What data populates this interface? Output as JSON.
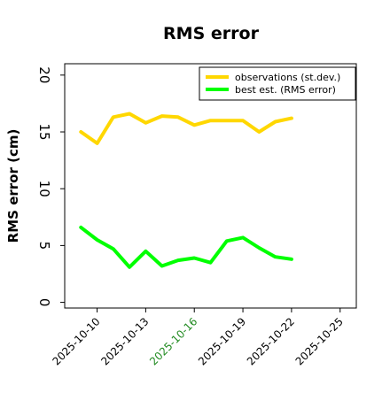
{
  "chart_data": {
    "type": "line",
    "title": "RMS error",
    "xlabel": "",
    "ylabel": "RMS error (cm)",
    "x_domain": [
      "2025-10-08",
      "2025-10-26"
    ],
    "ylim": [
      -0.5,
      21
    ],
    "yticks": [
      0,
      5,
      10,
      15,
      20
    ],
    "xticks": [
      "2025-10-10",
      "2025-10-13",
      "2025-10-16",
      "2025-10-19",
      "2025-10-22",
      "2025-10-25"
    ],
    "highlight_tick": "2025-10-16",
    "highlight_color": "#228b22",
    "grid": false,
    "legend_position": "top-right",
    "x": [
      "2025-10-09",
      "2025-10-10",
      "2025-10-11",
      "2025-10-12",
      "2025-10-13",
      "2025-10-14",
      "2025-10-15",
      "2025-10-16",
      "2025-10-17",
      "2025-10-18",
      "2025-10-19",
      "2025-10-20",
      "2025-10-21",
      "2025-10-22"
    ],
    "series": [
      {
        "name": "observations (st.dev.)",
        "color": "#ffd700",
        "values": [
          15.0,
          14.0,
          16.3,
          16.6,
          15.8,
          16.4,
          16.3,
          15.6,
          16.0,
          16.0,
          16.0,
          15.0,
          15.9,
          16.2
        ]
      },
      {
        "name": "best est. (RMS error)",
        "color": "#00ff00",
        "values": [
          6.6,
          5.5,
          4.7,
          3.1,
          4.5,
          3.2,
          3.7,
          3.9,
          3.5,
          5.4,
          5.7,
          4.8,
          4.0,
          3.8
        ]
      }
    ]
  }
}
